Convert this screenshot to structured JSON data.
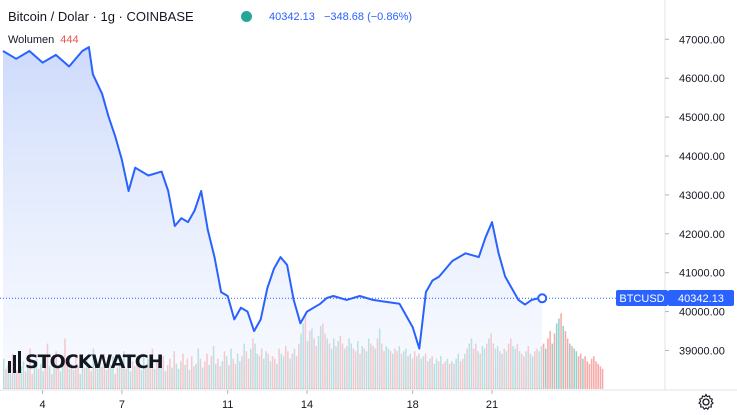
{
  "header": {
    "title": "Bitcoin / Dolar · 1g · COINBASE",
    "price": "40342.13",
    "change": "−348.68 (−0.86%)",
    "volume_label": "Wolumen",
    "volume_value": "444"
  },
  "logo": {
    "text": "STOCKWATCH"
  },
  "price_tag": {
    "symbol": "BTCUSD",
    "value": "40342.13"
  },
  "colors": {
    "line": "#2962ff",
    "area_top": "#d7e2fb",
    "volume_up": "#26a69a",
    "volume_down": "#ef5350"
  },
  "chart_data": {
    "type": "area",
    "ylim": [
      38200,
      47500
    ],
    "yticks": [
      "47000.00",
      "46000.00",
      "45000.00",
      "44000.00",
      "43000.00",
      "42000.00",
      "41000.00",
      "40000.00",
      "39000.00"
    ],
    "xticks": [
      {
        "t": 4,
        "label": "4"
      },
      {
        "t": 7,
        "label": "7"
      },
      {
        "t": 11,
        "label": "11"
      },
      {
        "t": 14,
        "label": "14"
      },
      {
        "t": 18,
        "label": "18"
      },
      {
        "t": 21,
        "label": "21"
      }
    ],
    "xlim": [
      2.5,
      25.2
    ],
    "series": [
      {
        "t": [
          2.5,
          3.0,
          3.5,
          4.0,
          4.5,
          5.0,
          5.5,
          5.75,
          5.9,
          6.25,
          6.5,
          6.75,
          7.0,
          7.25,
          7.5,
          8.0,
          8.5,
          8.75,
          9.0,
          9.25,
          9.5,
          9.75,
          10.0,
          10.25,
          10.5,
          10.75,
          11.0,
          11.25,
          11.5,
          11.75,
          12.0,
          12.25,
          12.5,
          12.75,
          13.0,
          13.25,
          13.5,
          13.75,
          14.0,
          14.25,
          14.5,
          14.75,
          15.0,
          15.5,
          16.0,
          16.5,
          17.0,
          17.5,
          18.0,
          18.25,
          18.5,
          18.75,
          19.0,
          19.5,
          20.0,
          20.5,
          20.75,
          21.0,
          21.25,
          21.5,
          21.75,
          22.0,
          22.25,
          22.5,
          22.75,
          22.9
        ],
        "values": [
          46700,
          46500,
          46700,
          46400,
          46600,
          46300,
          46700,
          46800,
          46100,
          45600,
          45000,
          44500,
          43900,
          43100,
          43700,
          43500,
          43600,
          43100,
          42200,
          42400,
          42300,
          42600,
          43100,
          42100,
          41400,
          40500,
          40400,
          39800,
          40100,
          40000,
          39500,
          39800,
          40600,
          41100,
          41400,
          41200,
          40300,
          39700,
          40000,
          40100,
          40200,
          40350,
          40400,
          40300,
          40400,
          40300,
          40250,
          40200,
          39600,
          39050,
          40500,
          40800,
          40900,
          41300,
          41500,
          41400,
          41900,
          42300,
          41500,
          40900,
          40600,
          40300,
          40180,
          40300,
          40340,
          40342
        ]
      }
    ],
    "volume": {
      "max": 444,
      "values": [
        120,
        80,
        95,
        60,
        140,
        100,
        75,
        130,
        90,
        110,
        70,
        85,
        160,
        60,
        95,
        120,
        80,
        100,
        70,
        130,
        180,
        90,
        60,
        110,
        150,
        85,
        70,
        95,
        200,
        120,
        80,
        100,
        75,
        140,
        90,
        60,
        110,
        85,
        130,
        95,
        70,
        160,
        100,
        80,
        120,
        90,
        140,
        75,
        110,
        95,
        130,
        60,
        85,
        100,
        120,
        150,
        80,
        95,
        70,
        110,
        90,
        130,
        100,
        75,
        140,
        85,
        120,
        95,
        160,
        80,
        110,
        100,
        90,
        130,
        70,
        95,
        120,
        85,
        150,
        100,
        80,
        110,
        140,
        95,
        120,
        75,
        130,
        90,
        100,
        160,
        120,
        85,
        110,
        140,
        95,
        130,
        170,
        100,
        120,
        90,
        110,
        150,
        130,
        95,
        160,
        120,
        100,
        140,
        110,
        130,
        180,
        150,
        120,
        160,
        200,
        180,
        140,
        130,
        160,
        120,
        150,
        140,
        110,
        130,
        120,
        100,
        160,
        140,
        130,
        170,
        150,
        120,
        140,
        160,
        130,
        180,
        220,
        260,
        300,
        190,
        230,
        240,
        200,
        170,
        210,
        250,
        260,
        220,
        200,
        180,
        160,
        200,
        170,
        190,
        210,
        180,
        160,
        170,
        200,
        180,
        160,
        150,
        190,
        140,
        170,
        160,
        150,
        200,
        180,
        170,
        160,
        200,
        240,
        180,
        150,
        170,
        160,
        150,
        140,
        160,
        150,
        170,
        140,
        150,
        160,
        130,
        140,
        120,
        150,
        130,
        140,
        120,
        130,
        140,
        110,
        120,
        130,
        100,
        120,
        110,
        130,
        100,
        110,
        120,
        100,
        110,
        100,
        120,
        140,
        110,
        120,
        140,
        160,
        180,
        200,
        160,
        180,
        150,
        140,
        170,
        160,
        180,
        200,
        220,
        180,
        160,
        170,
        150,
        140,
        160,
        150,
        180,
        200,
        170,
        160,
        180,
        150,
        140,
        130,
        150,
        170,
        140,
        130,
        150,
        160,
        150,
        170,
        180,
        160,
        200,
        230,
        180,
        220,
        260,
        280,
        300,
        250,
        230,
        200,
        180,
        170,
        160,
        150,
        130,
        140,
        120,
        130,
        110,
        100,
        120,
        130,
        110,
        100,
        90,
        80
      ],
      "up": [
        1,
        0,
        1,
        1,
        0,
        1,
        0,
        0,
        1,
        1,
        0,
        1,
        0,
        0,
        1,
        1,
        0,
        1,
        1,
        0,
        0,
        1,
        0,
        1,
        0,
        0,
        1,
        1,
        0,
        0,
        1,
        0,
        1,
        0,
        0,
        1,
        1,
        0,
        1,
        0,
        0,
        1,
        0,
        1,
        1,
        0,
        0,
        1,
        0,
        1,
        1,
        0,
        0,
        1,
        0,
        1,
        0,
        1,
        1,
        0,
        1,
        0,
        0,
        1,
        1,
        0,
        1,
        0,
        0,
        1,
        0,
        1,
        1,
        0,
        1,
        0,
        0,
        1,
        0,
        1,
        1,
        0,
        0,
        1,
        0,
        1,
        0,
        0,
        1,
        1,
        0,
        1,
        0,
        0,
        1,
        0,
        1,
        1,
        0,
        0,
        1,
        0,
        1,
        0,
        1,
        0,
        0,
        1,
        1,
        0,
        1,
        0,
        0,
        1,
        0,
        1,
        1,
        0,
        0,
        1,
        1,
        0,
        1,
        0,
        0,
        1,
        0,
        1,
        1,
        0,
        0,
        1,
        0,
        1,
        0,
        0,
        1,
        1,
        0,
        1,
        0,
        1,
        0,
        0,
        1,
        1,
        0,
        0,
        1,
        0,
        1,
        1,
        0,
        1,
        0,
        0,
        1,
        0,
        1,
        1,
        0,
        0,
        1,
        0,
        1,
        0,
        1,
        1,
        0,
        0,
        1,
        0,
        1,
        0,
        0,
        1,
        1,
        0,
        1,
        0,
        0,
        1,
        0,
        1,
        1,
        0,
        1,
        0,
        0,
        1,
        0,
        1,
        1,
        0,
        0,
        1,
        0,
        1,
        1,
        0,
        1,
        0,
        0,
        1,
        0,
        1,
        0,
        1,
        1,
        0,
        0,
        1,
        0,
        1,
        1,
        0,
        0,
        1,
        0,
        1,
        1,
        0,
        1,
        0,
        0,
        1,
        1,
        0,
        1,
        0,
        1,
        0,
        0,
        1,
        1,
        0,
        1,
        0,
        0,
        1,
        0,
        1,
        1,
        0,
        0,
        1,
        1,
        0,
        1,
        0,
        0,
        1,
        0,
        1,
        1,
        0,
        1,
        0,
        0,
        1,
        0,
        1,
        1,
        0,
        0,
        1
      ]
    }
  }
}
